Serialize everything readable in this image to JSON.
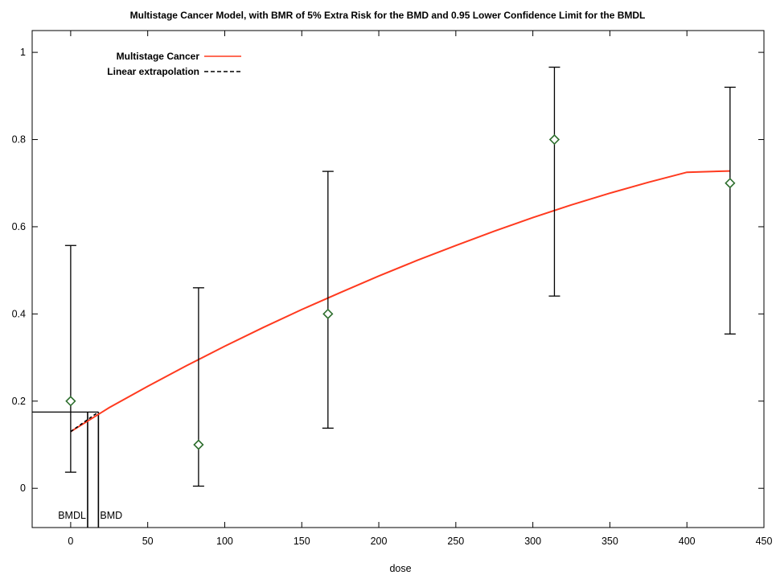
{
  "chart_data": {
    "type": "scatter",
    "title": "Multistage Cancer Model, with BMR of 5% Extra Risk for the BMD and 0.95 Lower Confidence Limit for the BMDL",
    "xlabel": "dose",
    "ylabel": "",
    "xlim": [
      -25,
      450
    ],
    "ylim": [
      -0.09,
      1.05
    ],
    "x_ticks": [
      "0",
      "50",
      "100",
      "150",
      "200",
      "250",
      "300",
      "350",
      "400",
      "450"
    ],
    "y_ticks": [
      "0",
      "0.2",
      "0.4",
      "0.6",
      "0.8",
      "1"
    ],
    "grid": false,
    "legend_position": "top-left",
    "series": [
      {
        "name": "Multistage Cancer",
        "kind": "curve",
        "color": "#ff3a1f",
        "x": [
          0,
          25,
          50,
          75,
          100,
          125,
          150,
          175,
          200,
          225,
          250,
          275,
          300,
          325,
          350,
          375,
          400,
          428
        ],
        "y": [
          0.13,
          0.185,
          0.234,
          0.281,
          0.326,
          0.369,
          0.41,
          0.449,
          0.487,
          0.523,
          0.557,
          0.59,
          0.621,
          0.65,
          0.677,
          0.702,
          0.725,
          0.728
        ]
      },
      {
        "name": "Linear extrapolation",
        "kind": "dashed",
        "color": "#000000",
        "x": [
          0,
          18
        ],
        "y": [
          0.13,
          0.175
        ]
      }
    ],
    "observed": {
      "marker": "diamond",
      "marker_color": "#2d6e2d",
      "points": [
        {
          "x": 0,
          "y": 0.2,
          "lower": 0.037,
          "upper": 0.557
        },
        {
          "x": 83,
          "y": 0.1,
          "lower": 0.005,
          "upper": 0.46
        },
        {
          "x": 167,
          "y": 0.4,
          "lower": 0.138,
          "upper": 0.727
        },
        {
          "x": 314,
          "y": 0.8,
          "lower": 0.441,
          "upper": 0.966
        },
        {
          "x": 428,
          "y": 0.7,
          "lower": 0.354,
          "upper": 0.92
        }
      ]
    },
    "bmr_level": 0.175,
    "bmdl": {
      "label": "BMDL",
      "x": 11
    },
    "bmd": {
      "label": "BMD",
      "x": 18
    }
  }
}
